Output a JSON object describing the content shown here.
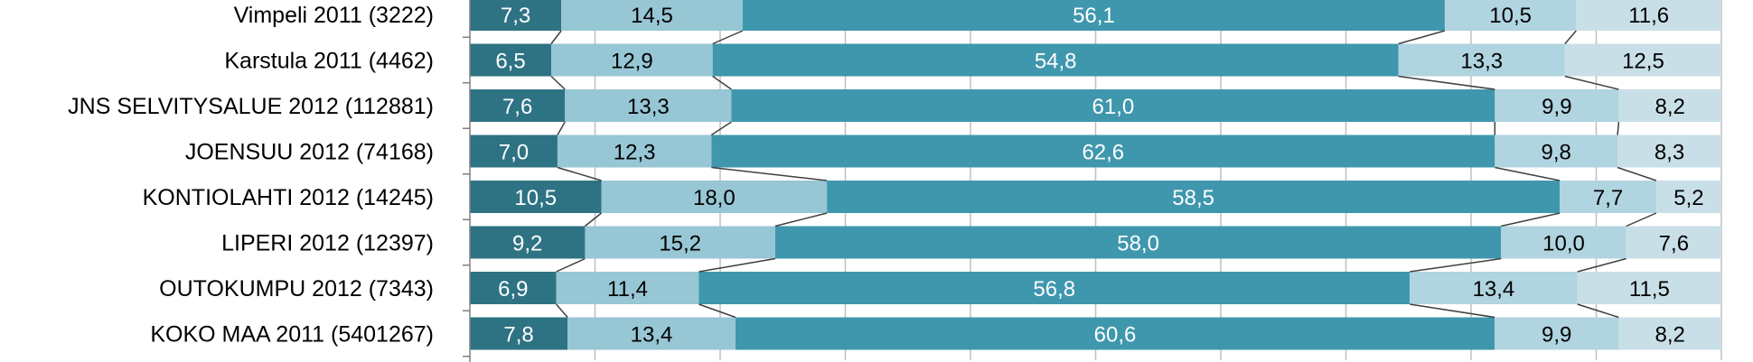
{
  "chart_data": {
    "type": "bar",
    "orientation": "horizontal",
    "stacked": "100%",
    "categories": [
      "Vimpeli 2011 (3222)",
      "Karstula 2011 (4462)",
      "JNS SELVITYSALUE 2012 (112881)",
      "JOENSUU 2012 (74168)",
      "KONTIOLAHTI 2012 (14245)",
      "LIPERI 2012 (12397)",
      "OUTOKUMPU 2012 (7343)",
      "KOKO MAA 2011 (5401267)"
    ],
    "series": [
      {
        "values": [
          7.3,
          6.5,
          7.6,
          7.0,
          10.5,
          9.2,
          6.9,
          7.8
        ],
        "labels": [
          "7,3",
          "6,5",
          "7,6",
          "7,0",
          "10,5",
          "9,2",
          "6,9",
          "7,8"
        ],
        "color": "#2e7384",
        "label_color": "#ffffff"
      },
      {
        "values": [
          14.5,
          12.9,
          13.3,
          12.3,
          18.0,
          15.2,
          11.4,
          13.4
        ],
        "labels": [
          "14,5",
          "12,9",
          "13,3",
          "12,3",
          "18,0",
          "15,2",
          "11,4",
          "13,4"
        ],
        "color": "#97c6d5",
        "label_color": "#000000"
      },
      {
        "values": [
          56.1,
          54.8,
          61.0,
          62.6,
          58.5,
          58.0,
          56.8,
          60.6
        ],
        "labels": [
          "56,1",
          "54,8",
          "61,0",
          "62,6",
          "58,5",
          "58,0",
          "56,8",
          "60,6"
        ],
        "color": "#3f97ad",
        "label_color": "#ffffff"
      },
      {
        "values": [
          10.5,
          13.3,
          9.9,
          9.8,
          7.7,
          10.0,
          13.4,
          9.9
        ],
        "labels": [
          "10,5",
          "13,3",
          "9,9",
          "9,8",
          "7,7",
          "10,0",
          "13,4",
          "9,9"
        ],
        "color": "#b0d4e0",
        "label_color": "#000000"
      },
      {
        "values": [
          11.6,
          12.5,
          8.2,
          8.3,
          5.2,
          7.6,
          11.5,
          8.2
        ],
        "labels": [
          "11,6",
          "12,5",
          "8,2",
          "8,3",
          "5,2",
          "7,6",
          "11,5",
          "8,2"
        ],
        "color": "#c9dfe8",
        "label_color": "#000000"
      }
    ],
    "xlim": [
      0,
      100
    ],
    "gridlines": true,
    "series_lines": true
  }
}
